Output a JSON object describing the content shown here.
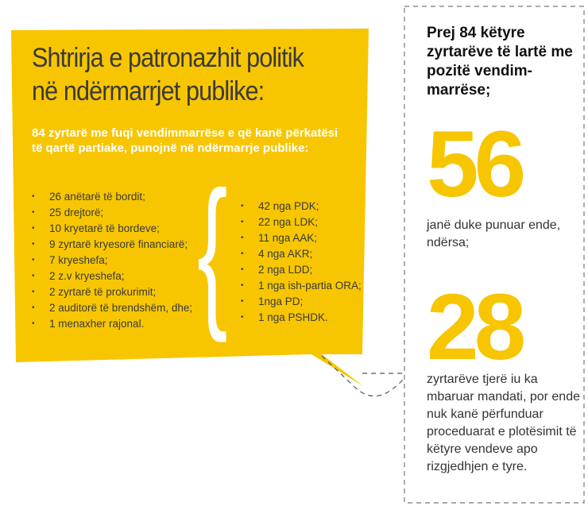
{
  "colors": {
    "accent": "#f7c600",
    "text_dark": "#3a3a3a",
    "text_light": "#ffffff",
    "dashed_border": "#777777"
  },
  "title": {
    "line1": "Shtrirja e patronazhit politik",
    "line2": "në ndërmarrjet publike:"
  },
  "lede": "84 zyrtarë me fuqi vendimmarrëse e që kanë përkatësi të qartë partiake, punojnë në ndërmarrje publike:",
  "roles": [
    "26 anëtarë të bordit;",
    "25 drejtorë;",
    "10 kryetarë të bordeve;",
    "9 zyrtarë kryesorë financiarë;",
    "7 kryeshefa;",
    "2 z.v kryeshefa;",
    "2 zyrtarë të prokurimit;",
    "2 auditorë të brendshëm, dhe;",
    "1 menaxher rajonal."
  ],
  "brace_glyph": "{",
  "parties": [
    "42 nga PDK;",
    "22 nga LDK;",
    "11 nga AAK;",
    "4 nga AKR;",
    "2 nga LDD;",
    "1 nga ish-partia ORA;",
    "1nga PD;",
    "1 nga PSHDK."
  ],
  "side": {
    "heading": "Prej 84 këtyre zyrtarëve të lartë me pozitë vendim-marrëse;",
    "still_working_count": "56",
    "still_working_text": "janë duke punuar ende, ndërsa;",
    "expired_count": "28",
    "expired_text": "zyrtarëve tjerë iu ka mbaruar mandati, por ende nuk kanë përfunduar proceduarat e plotësimit të këtyre vendeve apo rizgjedhjen e tyre."
  }
}
